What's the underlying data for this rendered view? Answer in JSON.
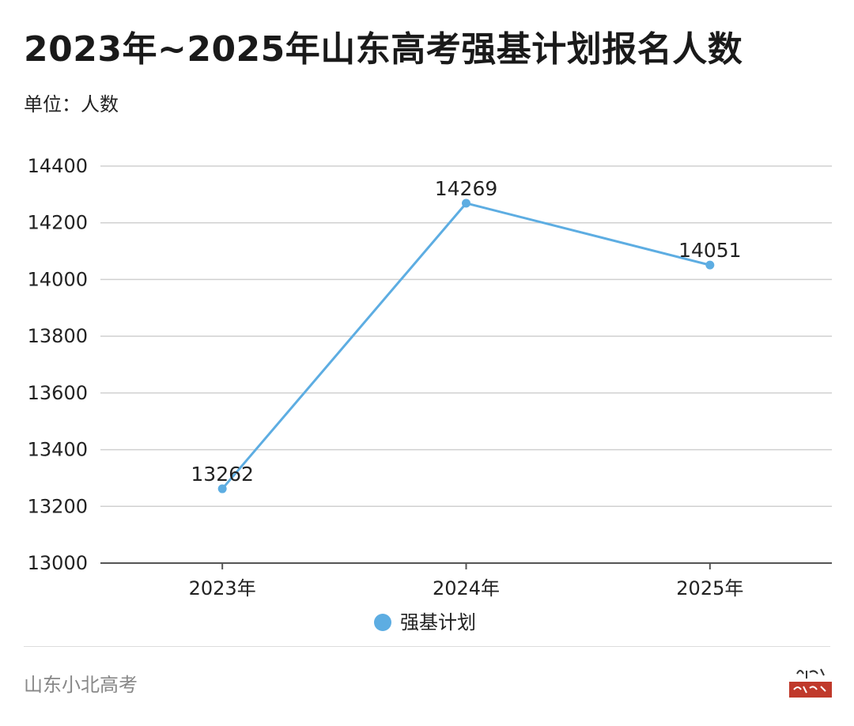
{
  "header": {
    "title": "2023年~2025年山东高考强基计划报名人数",
    "unit": "单位：人数"
  },
  "footer": {
    "source": "山东小北高考"
  },
  "colors": {
    "series": "#5dade2",
    "grid": "#d0d0d0",
    "axis": "#555555",
    "stamp": "#c0392b"
  },
  "chart_data": {
    "type": "line",
    "categories": [
      "2023年",
      "2024年",
      "2025年"
    ],
    "series": [
      {
        "name": "强基计划",
        "values": [
          13262,
          14269,
          14051
        ]
      }
    ],
    "ylim": [
      13000,
      14400
    ],
    "yticks": [
      13000,
      13200,
      13400,
      13600,
      13800,
      14000,
      14200,
      14400
    ],
    "grid": true,
    "legend": "bottom-center",
    "data_labels": true
  }
}
